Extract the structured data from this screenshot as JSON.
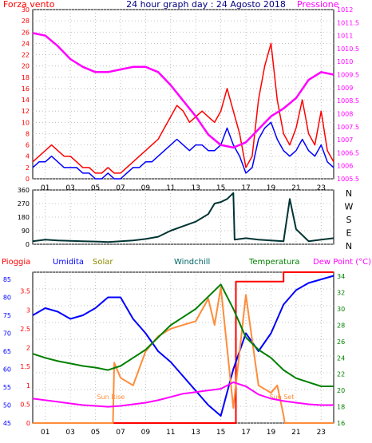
{
  "chart_data": [
    {
      "type": "line",
      "title": "24 hour graph day : 24 Agosto 2018",
      "xticks": [
        "01",
        "03",
        "05",
        "07",
        "09",
        "11",
        "13",
        "15",
        "17",
        "19",
        "21",
        "23"
      ],
      "xlim": [
        0,
        24
      ],
      "left_axis": {
        "label": "Forza vento",
        "color": "#ff0000",
        "ylim": [
          0,
          30
        ],
        "ticks": [
          "0",
          "2",
          "4",
          "6",
          "8",
          "10",
          "12",
          "14",
          "16",
          "18",
          "20",
          "22",
          "24",
          "26",
          "28",
          "30"
        ]
      },
      "right_axis": {
        "label": "Pressione",
        "color": "#ff00ff",
        "ylim": [
          1005.5,
          1012
        ],
        "ticks": [
          "1005.5",
          "1006",
          "1006.5",
          "1007",
          "1007.5",
          "1008",
          "1008.5",
          "1009",
          "1009.5",
          "1010",
          "1010.5",
          "1011",
          "1011.5",
          "1012"
        ]
      },
      "series": [
        {
          "name": "Forza vento",
          "axis": "left",
          "color": "#ff0000",
          "x": [
            0,
            0.5,
            1,
            1.5,
            2,
            2.5,
            3,
            3.5,
            4,
            4.5,
            5,
            5.5,
            6,
            6.5,
            7,
            7.5,
            8,
            8.5,
            9,
            9.5,
            10,
            10.5,
            11,
            11.5,
            12,
            12.5,
            13,
            13.5,
            14,
            14.5,
            15,
            15.5,
            16,
            16.5,
            17,
            17.5,
            18,
            18.5,
            19,
            19.5,
            20,
            20.5,
            21,
            21.5,
            22,
            22.5,
            23,
            23.5,
            24
          ],
          "values": [
            3,
            4,
            5,
            6,
            5,
            4,
            4,
            3,
            2,
            2,
            1,
            1,
            2,
            1,
            1,
            2,
            3,
            4,
            5,
            6,
            7,
            9,
            11,
            13,
            12,
            10,
            11,
            12,
            11,
            10,
            12,
            16,
            12,
            8,
            2,
            4,
            14,
            20,
            24,
            14,
            8,
            6,
            9,
            14,
            8,
            6,
            12,
            5,
            3
          ]
        },
        {
          "name": "Wind average",
          "axis": "left",
          "color": "#0000ff",
          "x": [
            0,
            0.5,
            1,
            1.5,
            2,
            2.5,
            3,
            3.5,
            4,
            4.5,
            5,
            5.5,
            6,
            6.5,
            7,
            7.5,
            8,
            8.5,
            9,
            9.5,
            10,
            10.5,
            11,
            11.5,
            12,
            12.5,
            13,
            13.5,
            14,
            14.5,
            15,
            15.5,
            16,
            16.5,
            17,
            17.5,
            18,
            18.5,
            19,
            19.5,
            20,
            20.5,
            21,
            21.5,
            22,
            22.5,
            23,
            23.5,
            24
          ],
          "values": [
            2,
            3,
            3,
            4,
            3,
            2,
            2,
            2,
            1,
            1,
            0,
            0,
            1,
            0,
            0,
            1,
            2,
            2,
            3,
            3,
            4,
            5,
            6,
            7,
            6,
            5,
            6,
            6,
            5,
            5,
            6,
            9,
            6,
            4,
            1,
            2,
            7,
            9,
            10,
            7,
            5,
            4,
            5,
            7,
            5,
            4,
            6,
            3,
            2
          ]
        },
        {
          "name": "Pressione",
          "axis": "right",
          "color": "#ff00ff",
          "x": [
            0,
            1,
            2,
            3,
            4,
            5,
            6,
            7,
            8,
            9,
            10,
            11,
            12,
            13,
            14,
            15,
            16,
            17,
            18,
            19,
            20,
            21,
            22,
            23,
            24
          ],
          "values": [
            1011.1,
            1011.0,
            1010.6,
            1010.1,
            1009.8,
            1009.6,
            1009.6,
            1009.7,
            1009.8,
            1009.8,
            1009.6,
            1009.1,
            1008.5,
            1007.9,
            1007.2,
            1006.8,
            1006.7,
            1006.9,
            1007.4,
            1007.9,
            1008.2,
            1008.6,
            1009.3,
            1009.6,
            1009.5
          ]
        }
      ]
    },
    {
      "type": "line",
      "xlim": [
        0,
        24
      ],
      "ylim": [
        0,
        360
      ],
      "left_ticks": [
        "0",
        "90",
        "180",
        "270",
        "360"
      ],
      "right_labels": [
        "N",
        "W",
        "S",
        "E",
        "N"
      ],
      "series": [
        {
          "name": "Direzione vento",
          "color": "#003333",
          "x": [
            0,
            1,
            2,
            3,
            4,
            5,
            6,
            7,
            8,
            9,
            10,
            11,
            12,
            13,
            14,
            14.5,
            15,
            15.5,
            16,
            16.1,
            17,
            18,
            19,
            20,
            20.5,
            21,
            22,
            23,
            24
          ],
          "values": [
            20,
            30,
            25,
            22,
            20,
            18,
            15,
            20,
            25,
            35,
            50,
            90,
            120,
            150,
            200,
            270,
            280,
            300,
            340,
            30,
            40,
            30,
            25,
            20,
            300,
            100,
            20,
            30,
            40
          ]
        }
      ]
    },
    {
      "type": "line",
      "xlim": [
        0,
        24
      ],
      "legend": [
        "Pioggia",
        "Umidita",
        "Solar",
        "Windchill",
        "Temperatura",
        "Dew Point (°C)"
      ],
      "left_axis": {
        "ylim": [
          0,
          4
        ],
        "ticks": [
          "0",
          "0.5",
          "1",
          "1.5",
          "2",
          "2.5",
          "3",
          "3.5"
        ]
      },
      "humidity_axis": {
        "ylim": [
          45,
          87
        ],
        "ticks": [
          "45",
          "50",
          "55",
          "60",
          "65",
          "70",
          "75",
          "80",
          "85"
        ]
      },
      "right_axis": {
        "ylim": [
          16,
          34.5
        ],
        "ticks": [
          "16",
          "18",
          "20",
          "22",
          "24",
          "26",
          "28",
          "30",
          "32",
          "34"
        ]
      },
      "annotations": [
        "Sun Rise",
        "Sun Set"
      ],
      "series": [
        {
          "name": "Pioggia",
          "axis": "left",
          "color": "#ff0000",
          "x": [
            0,
            15.9,
            16.0,
            16.2,
            19.9,
            20.0,
            24
          ],
          "values": [
            0,
            0,
            0,
            3.75,
            3.75,
            4,
            4
          ]
        },
        {
          "name": "Umidita",
          "axis": "humidity",
          "color": "#0000ff",
          "x": [
            0,
            1,
            2,
            3,
            4,
            5,
            6,
            7,
            8,
            9,
            10,
            11,
            12,
            13,
            14,
            15,
            16,
            17,
            18,
            19,
            20,
            21,
            22,
            23,
            24
          ],
          "values": [
            75,
            77,
            76,
            74,
            75,
            77,
            80,
            80,
            74,
            70,
            65,
            62,
            58,
            54,
            50,
            47,
            60,
            70,
            65,
            70,
            78,
            82,
            84,
            85,
            86
          ]
        },
        {
          "name": "Solar",
          "axis": "left",
          "color": "#ff8c3a",
          "x": [
            0,
            6.4,
            6.5,
            7,
            8,
            9,
            10,
            11,
            12,
            13,
            14,
            14.5,
            15,
            16,
            17,
            18,
            19,
            19.5,
            20,
            20.1,
            24
          ],
          "values": [
            0,
            0,
            1.6,
            1.2,
            1.0,
            1.9,
            2.3,
            2.5,
            2.6,
            2.7,
            3.3,
            2.6,
            3.6,
            0.4,
            3.4,
            1.0,
            0.8,
            1.0,
            0.2,
            0,
            0
          ]
        },
        {
          "name": "Temperatura",
          "axis": "right",
          "color": "#008000",
          "x": [
            0,
            1,
            2,
            3,
            4,
            5,
            6,
            7,
            8,
            9,
            10,
            11,
            12,
            13,
            14,
            15,
            16,
            17,
            18,
            19,
            20,
            21,
            22,
            23,
            24
          ],
          "values": [
            24.5,
            24.0,
            23.6,
            23.3,
            23.0,
            22.8,
            22.5,
            23.0,
            24.0,
            25.0,
            26.5,
            28.0,
            29.0,
            30.0,
            31.5,
            33.0,
            30.0,
            26.5,
            25.0,
            24.0,
            22.5,
            21.5,
            21.0,
            20.5,
            20.5
          ]
        },
        {
          "name": "Dew Point (°C)",
          "axis": "right",
          "color": "#ff00ff",
          "x": [
            0,
            1,
            2,
            3,
            4,
            5,
            6,
            7,
            8,
            9,
            10,
            11,
            12,
            13,
            14,
            15,
            16,
            17,
            18,
            19,
            20,
            21,
            22,
            23,
            24
          ],
          "values": [
            19.0,
            18.8,
            18.6,
            18.4,
            18.2,
            18.1,
            18.0,
            18.1,
            18.3,
            18.5,
            18.8,
            19.2,
            19.6,
            19.8,
            20.0,
            20.2,
            21.0,
            20.5,
            19.5,
            19.0,
            18.7,
            18.5,
            18.3,
            18.2,
            18.2
          ]
        }
      ]
    }
  ]
}
